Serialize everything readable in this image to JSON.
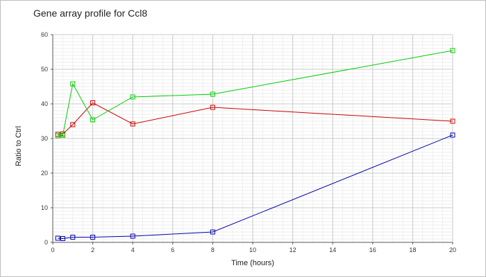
{
  "chart_data": {
    "type": "line",
    "title": "Gene array profile for Ccl8",
    "xlabel": "Time (hours)",
    "ylabel": "Ratio to Ctrl",
    "xlim": [
      0,
      20
    ],
    "ylim": [
      0,
      60
    ],
    "xticks": [
      0,
      2,
      4,
      6,
      8,
      10,
      12,
      14,
      16,
      18,
      20
    ],
    "yticks": [
      0,
      10,
      20,
      30,
      40,
      50,
      60
    ],
    "grid": true,
    "legend": "none",
    "marker": "open-square",
    "series": [
      {
        "color": "#cc0000",
        "x": [
          0.25,
          0.5,
          1,
          2,
          4,
          8,
          20
        ],
        "y": [
          31.2,
          31.3,
          34.0,
          40.3,
          34.2,
          39.0,
          35.0
        ]
      },
      {
        "color": "#00cc00",
        "x": [
          0.25,
          0.5,
          1,
          2,
          4,
          8,
          20
        ],
        "y": [
          30.8,
          30.9,
          45.8,
          35.4,
          42.0,
          42.8,
          55.4
        ]
      },
      {
        "color": "#0000aa",
        "x": [
          0.25,
          0.5,
          1,
          2,
          4,
          8,
          20
        ],
        "y": [
          1.2,
          1.1,
          1.5,
          1.5,
          1.8,
          3.0,
          31.0
        ]
      }
    ]
  }
}
